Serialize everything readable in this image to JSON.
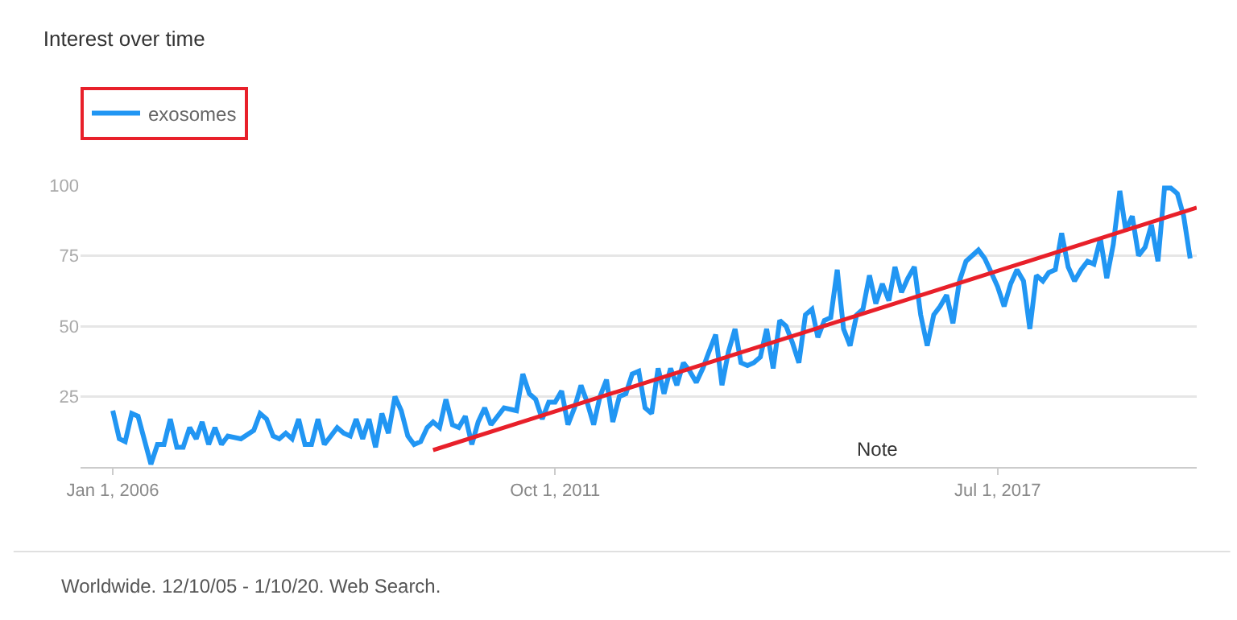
{
  "chart_data": {
    "type": "line",
    "title": "Interest over time",
    "x": [
      "2006-01",
      "2006-02",
      "2006-03",
      "2006-04",
      "2006-05",
      "2006-07",
      "2006-08",
      "2006-09",
      "2006-10",
      "2006-11",
      "2006-12",
      "2007-01",
      "2007-02",
      "2007-03",
      "2007-04",
      "2007-05",
      "2007-06",
      "2007-07",
      "2007-09",
      "2007-11",
      "2007-12",
      "2008-01",
      "2008-02",
      "2008-03",
      "2008-04",
      "2008-05",
      "2008-06",
      "2008-07",
      "2008-08",
      "2008-09",
      "2008-10",
      "2008-11",
      "2008-12",
      "2009-01",
      "2009-02",
      "2009-03",
      "2009-04",
      "2009-05",
      "2009-06",
      "2009-07",
      "2009-08",
      "2009-09",
      "2009-10",
      "2009-11",
      "2009-12",
      "2010-01",
      "2010-02",
      "2010-03",
      "2010-04",
      "2010-05",
      "2010-06",
      "2010-07",
      "2010-08",
      "2010-09",
      "2010-10",
      "2010-11",
      "2010-12",
      "2011-02",
      "2011-04",
      "2011-05",
      "2011-06",
      "2011-07",
      "2011-08",
      "2011-09",
      "2011-10",
      "2011-11",
      "2011-12",
      "2012-01",
      "2012-02",
      "2012-03",
      "2012-04",
      "2012-05",
      "2012-06",
      "2012-07",
      "2012-08",
      "2012-09",
      "2012-10",
      "2012-11",
      "2012-12",
      "2013-01",
      "2013-02",
      "2013-03",
      "2013-04",
      "2013-05",
      "2013-06",
      "2013-07",
      "2013-08",
      "2013-09",
      "2013-10",
      "2013-11",
      "2013-12",
      "2014-01",
      "2014-02",
      "2014-03",
      "2014-04",
      "2014-05",
      "2014-06",
      "2014-07",
      "2014-08",
      "2014-09",
      "2014-10",
      "2014-11",
      "2014-12",
      "2015-01",
      "2015-02",
      "2015-03",
      "2015-04",
      "2015-05",
      "2015-06",
      "2015-07",
      "2015-08",
      "2015-09",
      "2015-10",
      "2015-11",
      "2015-12",
      "2016-01",
      "2016-02",
      "2016-03",
      "2016-04",
      "2016-05",
      "2016-06",
      "2016-07",
      "2016-08",
      "2016-09",
      "2016-10",
      "2016-11",
      "2016-12",
      "2017-01",
      "2017-02",
      "2017-04",
      "2017-05",
      "2017-06",
      "2017-07",
      "2017-08",
      "2017-09",
      "2017-10",
      "2017-11",
      "2017-12",
      "2018-01",
      "2018-02",
      "2018-03",
      "2018-04",
      "2018-05",
      "2018-06",
      "2018-07",
      "2018-08",
      "2018-09",
      "2018-10",
      "2018-11",
      "2018-12",
      "2019-01",
      "2019-02",
      "2019-03",
      "2019-04",
      "2019-05",
      "2019-06",
      "2019-07",
      "2019-08",
      "2019-09",
      "2019-10",
      "2019-11",
      "2019-12",
      "2020-01"
    ],
    "series": [
      {
        "name": "exosomes",
        "color": "#2196f3",
        "values": [
          20,
          10,
          9,
          19,
          18,
          1,
          8,
          8,
          17,
          7,
          7,
          14,
          10,
          16,
          8,
          14,
          8,
          11,
          10,
          13,
          19,
          17,
          11,
          10,
          12,
          10,
          17,
          8,
          8,
          17,
          8,
          11,
          14,
          12,
          11,
          17,
          10,
          17,
          7,
          19,
          12,
          25,
          20,
          11,
          8,
          9,
          14,
          16,
          14,
          24,
          15,
          14,
          18,
          8,
          16,
          21,
          15,
          21,
          20,
          33,
          26,
          24,
          17,
          23,
          23,
          27,
          15,
          21,
          29,
          23,
          15,
          25,
          31,
          16,
          25,
          26,
          33,
          34,
          21,
          19,
          35,
          26,
          35,
          29,
          37,
          34,
          30,
          35,
          41,
          47,
          29,
          41,
          49,
          37,
          36,
          37,
          39,
          49,
          35,
          52,
          50,
          44,
          37,
          54,
          56,
          46,
          52,
          53,
          70,
          49,
          43,
          54,
          56,
          68,
          58,
          65,
          59,
          71,
          62,
          67,
          71,
          54,
          43,
          54,
          57,
          61,
          51,
          66,
          73,
          77,
          74,
          69,
          64,
          57,
          65,
          70,
          66,
          49,
          68,
          66,
          69,
          70,
          83,
          71,
          66,
          70,
          73,
          72,
          81,
          67,
          79,
          98,
          84,
          89,
          75,
          78,
          86,
          73,
          99,
          99,
          97,
          89,
          74
        ]
      },
      {
        "type": "line",
        "color": "#e8202a",
        "x": [
          "2010-03",
          "2020-02"
        ],
        "values": [
          6,
          92
        ]
      }
    ],
    "xlim": [
      "2005-08-01",
      "2020-02-01"
    ],
    "xticks": [
      {
        "value": "2006-01-01",
        "label": "Jan 1, 2006"
      },
      {
        "value": "2011-10-01",
        "label": "Oct 1, 2011"
      },
      {
        "value": "2017-07-01",
        "label": "Jul 1, 2017"
      }
    ],
    "ylim": [
      0,
      100
    ],
    "yticks": [
      25,
      50,
      75,
      100
    ],
    "grid": "y",
    "legend": "top left",
    "marker": "none",
    "line_style": "solid",
    "annotations": [
      "Note",
      "Worldwide. 12/10/05 - 1/10/20. Web Search."
    ]
  }
}
